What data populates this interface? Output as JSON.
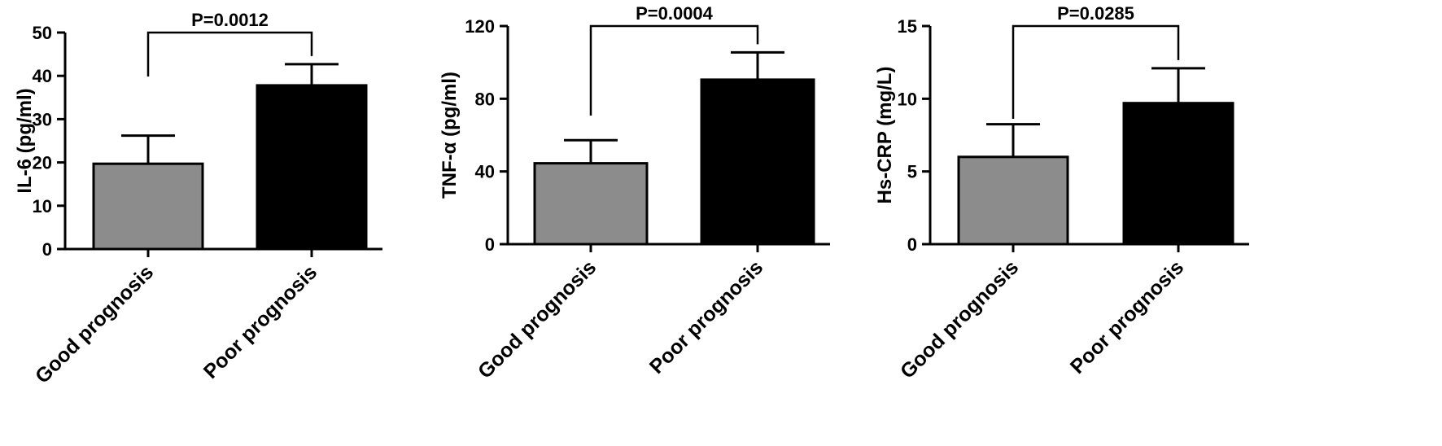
{
  "colors": {
    "good": "#8c8c8c",
    "poor": "#000000",
    "axis": "#000000"
  },
  "chart_data": [
    {
      "type": "bar",
      "categories": [
        "Good prognosis",
        "Poor prognosis"
      ],
      "values": [
        19.7,
        37.8
      ],
      "errors": [
        6.5,
        4.9
      ],
      "ylabel": "IL-6 (pg/ml)",
      "ylim": [
        0,
        50
      ],
      "yticks": [
        0,
        10,
        20,
        30,
        40,
        50
      ],
      "annotation": "P=0.0012",
      "grid": false
    },
    {
      "type": "bar",
      "categories": [
        "Good prognosis",
        "Poor prognosis"
      ],
      "values": [
        44.5,
        90.5
      ],
      "errors": [
        12.7,
        15.0
      ],
      "ylabel": "TNF-α (pg/ml)",
      "ylim": [
        0,
        120
      ],
      "yticks": [
        0,
        40,
        80,
        120
      ],
      "annotation": "P=0.0004",
      "grid": false
    },
    {
      "type": "bar",
      "categories": [
        "Good prognosis",
        "Poor prognosis"
      ],
      "values": [
        6.0,
        9.7
      ],
      "errors": [
        2.25,
        2.4
      ],
      "ylabel": "Hs-CRP (mg/L)",
      "ylim": [
        0,
        15
      ],
      "yticks": [
        0,
        5,
        10,
        15
      ],
      "annotation": "P=0.0285",
      "grid": false
    }
  ]
}
